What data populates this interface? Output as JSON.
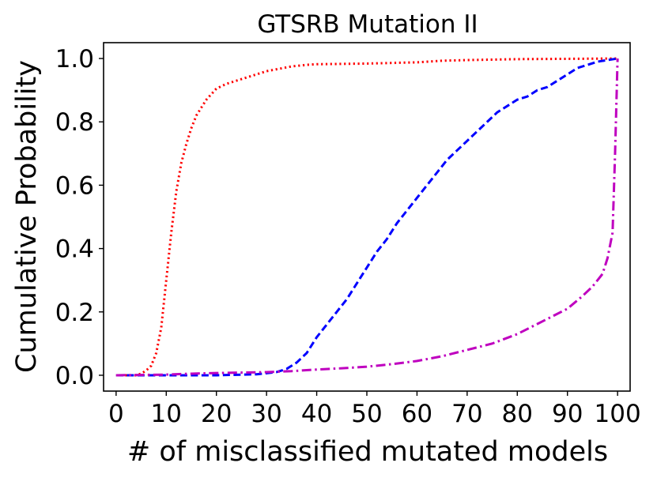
{
  "chart_data": {
    "type": "line",
    "title": "GTSRB Mutation II",
    "xlabel": "# of misclassified mutated models",
    "ylabel": "Cumulative Probability",
    "xlim": [
      -2.5,
      102.5
    ],
    "ylim": [
      -0.05,
      1.05
    ],
    "xticks": [
      0,
      10,
      20,
      30,
      40,
      50,
      60,
      70,
      80,
      90,
      100
    ],
    "yticks": [
      0.0,
      0.2,
      0.4,
      0.6,
      0.8,
      1.0
    ],
    "xtick_labels": [
      "0",
      "10",
      "20",
      "30",
      "40",
      "50",
      "60",
      "70",
      "80",
      "90",
      "100"
    ],
    "ytick_labels": [
      "0.0",
      "0.2",
      "0.4",
      "0.6",
      "0.8",
      "1.0"
    ],
    "grid": false,
    "series": [
      {
        "name": "red-dotted",
        "color": "#ff0000",
        "style": "dotted",
        "x": [
          0,
          4,
          5,
          6,
          7,
          8,
          9,
          10,
          11,
          12,
          13,
          14,
          15,
          16,
          18,
          20,
          22,
          25,
          28,
          30,
          35,
          38,
          40,
          45,
          50,
          55,
          60,
          65,
          70,
          80,
          90,
          100
        ],
        "y": [
          0.0,
          0.0,
          0.005,
          0.015,
          0.03,
          0.07,
          0.15,
          0.3,
          0.45,
          0.58,
          0.67,
          0.73,
          0.78,
          0.82,
          0.87,
          0.905,
          0.92,
          0.935,
          0.95,
          0.96,
          0.975,
          0.98,
          0.982,
          0.983,
          0.984,
          0.986,
          0.988,
          0.993,
          0.995,
          0.998,
          0.999,
          1.0
        ]
      },
      {
        "name": "blue-dashed",
        "color": "#0000ff",
        "style": "dashed",
        "x": [
          0,
          10,
          20,
          28,
          32,
          34,
          36,
          38,
          40,
          42,
          44,
          46,
          48,
          50,
          52,
          54,
          56,
          58,
          60,
          62,
          64,
          66,
          68,
          70,
          72,
          74,
          76,
          78,
          80,
          82,
          84,
          86,
          88,
          90,
          92,
          94,
          96,
          98,
          100
        ],
        "y": [
          0.0,
          0.0,
          0.0,
          0.003,
          0.01,
          0.02,
          0.04,
          0.07,
          0.12,
          0.16,
          0.2,
          0.24,
          0.29,
          0.34,
          0.39,
          0.43,
          0.48,
          0.52,
          0.56,
          0.6,
          0.64,
          0.68,
          0.71,
          0.74,
          0.77,
          0.8,
          0.83,
          0.85,
          0.87,
          0.88,
          0.9,
          0.91,
          0.93,
          0.95,
          0.97,
          0.98,
          0.99,
          0.995,
          1.0
        ]
      },
      {
        "name": "magenta-dashdot",
        "color": "#bf00bf",
        "style": "dashdot",
        "x": [
          0,
          10,
          15,
          20,
          30,
          35,
          40,
          45,
          50,
          55,
          60,
          65,
          70,
          75,
          80,
          85,
          90,
          93,
          95,
          97,
          98,
          99,
          99.5,
          100
        ],
        "y": [
          0.0,
          0.002,
          0.005,
          0.007,
          0.01,
          0.013,
          0.018,
          0.022,
          0.027,
          0.035,
          0.045,
          0.06,
          0.08,
          0.1,
          0.13,
          0.17,
          0.21,
          0.25,
          0.28,
          0.32,
          0.37,
          0.45,
          0.7,
          1.0
        ]
      }
    ]
  }
}
